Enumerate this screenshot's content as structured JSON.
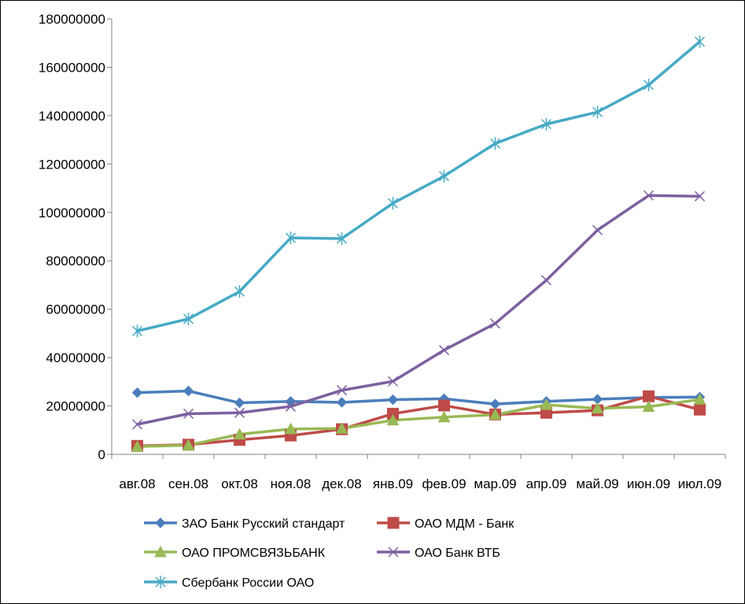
{
  "chart_data": {
    "type": "line",
    "title": "",
    "xlabel": "",
    "ylabel": "",
    "ylim": [
      0,
      180000000
    ],
    "yticks": [
      0,
      20000000,
      40000000,
      60000000,
      80000000,
      100000000,
      120000000,
      140000000,
      160000000,
      180000000
    ],
    "ytick_labels": [
      "0",
      "20000000",
      "40000000",
      "60000000",
      "80000000",
      "100000000",
      "120000000",
      "140000000",
      "160000000",
      "180000000"
    ],
    "categories": [
      "авг.08",
      "сен.08",
      "окт.08",
      "ноя.08",
      "дек.08",
      "янв.09",
      "фев.09",
      "мар.09",
      "апр.09",
      "май.09",
      "июн.09",
      "июл.09"
    ],
    "grid": "horizontal",
    "legend_position": "bottom",
    "series": [
      {
        "name": "ЗАО Банк Русский стандарт",
        "color": "#4A7EBB",
        "marker": "diamond",
        "values": [
          25500000,
          26200000,
          21300000,
          21900000,
          21500000,
          22600000,
          23000000,
          20800000,
          21900000,
          22800000,
          23500000,
          23700000
        ]
      },
      {
        "name": "ОАО МДМ - Банк",
        "color": "#BE4B48",
        "marker": "square",
        "values": [
          3500000,
          4000000,
          6000000,
          7800000,
          10400000,
          16800000,
          20200000,
          16500000,
          17200000,
          18200000,
          24000000,
          18500000
        ]
      },
      {
        "name": "ОАО ПРОМСВЯЗЬБАНК",
        "color": "#98B954",
        "marker": "triangle",
        "values": [
          3200000,
          3800000,
          8300000,
          10500000,
          10700000,
          14100000,
          15400000,
          16400000,
          20500000,
          19000000,
          19700000,
          22700000
        ]
      },
      {
        "name": "ОАО Банк  ВТБ",
        "color": "#7D60A0",
        "marker": "x",
        "values": [
          12400000,
          16800000,
          17200000,
          19800000,
          26500000,
          30200000,
          43100000,
          54100000,
          72000000,
          92700000,
          107000000,
          106700000
        ]
      },
      {
        "name": "Сбербанк России ОАО",
        "color": "#46AAC5",
        "marker": "star",
        "values": [
          51000000,
          56000000,
          67300000,
          89500000,
          89200000,
          103800000,
          115000000,
          128500000,
          136500000,
          141500000,
          152700000,
          170600000
        ]
      }
    ]
  }
}
